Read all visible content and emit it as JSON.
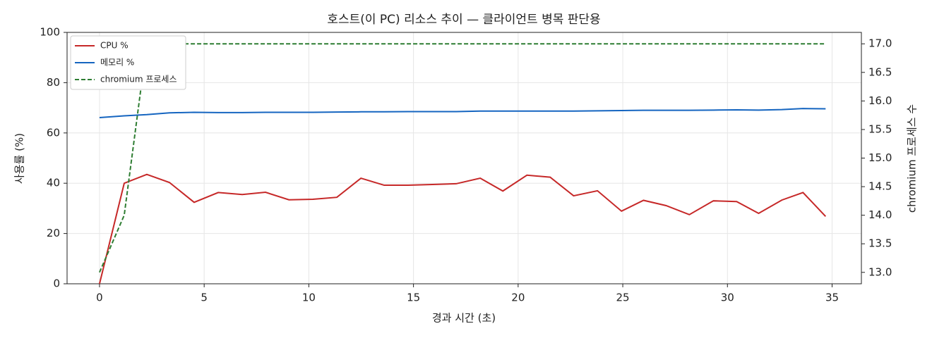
{
  "chart_data": {
    "type": "line",
    "title": "호스트(이 PC) 리소스 추이 — 클라이언트 병목 판단용",
    "x_label": "경과 시간 (초)",
    "y_label": "사용률 (%)",
    "y2_label": "chromium 프로세스 수",
    "x": [
      0,
      1.18,
      2.26,
      3.34,
      4.52,
      5.67,
      6.82,
      7.93,
      9.05,
      10.19,
      11.34,
      12.49,
      13.6,
      14.75,
      15.9,
      17.04,
      18.19,
      19.27,
      20.42,
      21.53,
      22.65,
      23.79,
      24.94,
      25.99,
      27.07,
      28.18,
      29.33,
      30.44,
      31.49,
      32.6,
      33.61,
      34.69
    ],
    "series": [
      {
        "name": "CPU %",
        "color": "#c62828",
        "dash": false,
        "values": [
          0,
          40,
          43.5,
          40.3,
          32.4,
          36.3,
          35.5,
          36.4,
          33.4,
          33.6,
          34.4,
          42,
          39.2,
          39.2,
          39.5,
          39.8,
          42,
          36.9,
          43.2,
          42.4,
          35,
          37,
          28.9,
          33.2,
          31.1,
          27.5,
          33,
          32.7,
          28,
          33.3,
          36.3,
          26.8
        ]
      },
      {
        "name": "메모리 %",
        "color": "#1565c0",
        "dash": false,
        "values": [
          66.1,
          66.8,
          67.3,
          68,
          68.2,
          68.1,
          68.1,
          68.2,
          68.2,
          68.2,
          68.3,
          68.4,
          68.4,
          68.5,
          68.5,
          68.5,
          68.7,
          68.7,
          68.7,
          68.7,
          68.7,
          68.8,
          68.9,
          69,
          69,
          69,
          69.1,
          69.2,
          69.1,
          69.3,
          69.7,
          69.6
        ]
      },
      {
        "name": "chromium 프로세스",
        "color": "#2e7d32",
        "dash": true,
        "axis": "y2",
        "values": [
          13,
          14,
          17,
          17,
          17,
          17,
          17,
          17,
          17,
          17,
          17,
          17,
          17,
          17,
          17,
          17,
          17,
          17,
          17,
          17,
          17,
          17,
          17,
          17,
          17,
          17,
          17,
          17,
          17,
          17,
          17,
          17
        ]
      }
    ],
    "xlim": [
      -1.55,
      36.4
    ],
    "xticks": [
      0,
      5,
      10,
      15,
      20,
      25,
      30,
      35
    ],
    "ylim": [
      0,
      100
    ],
    "yticks": [
      0,
      20,
      40,
      60,
      80,
      100
    ],
    "y2lim": [
      12.8,
      17.2
    ],
    "y2ticks": [
      {
        "value": 13,
        "label": "13.0"
      },
      13.5,
      {
        "value": 14,
        "label": "14.0"
      },
      14.5,
      {
        "value": 15,
        "label": "15.0"
      },
      15.5,
      {
        "value": 16,
        "label": "16.0"
      },
      16.5,
      {
        "value": 17,
        "label": "17.0"
      }
    ],
    "grid": true,
    "legend": "upper-left"
  }
}
